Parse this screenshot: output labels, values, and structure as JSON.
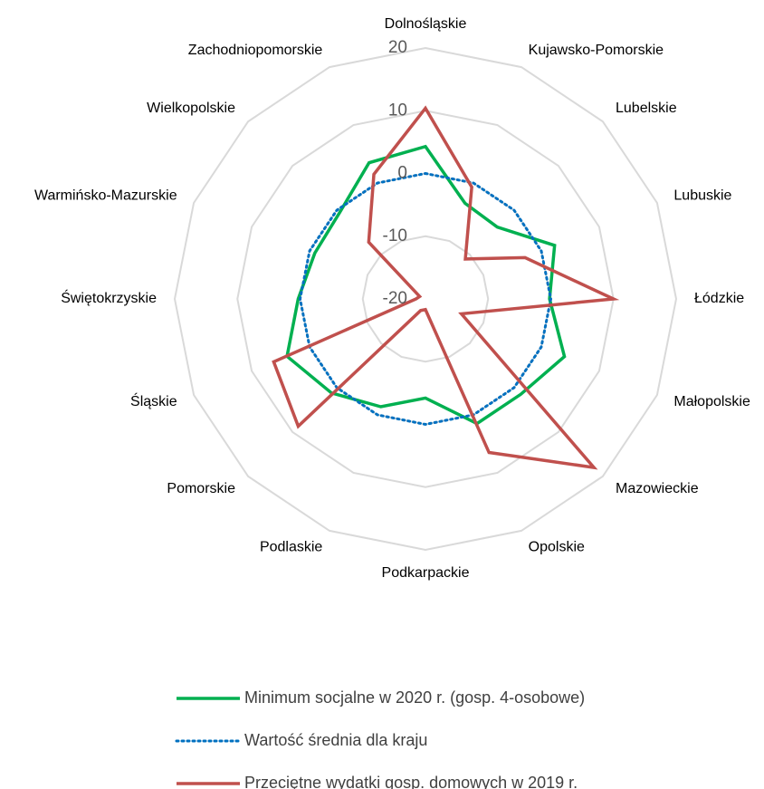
{
  "chart_data": {
    "type": "radar",
    "categories": [
      "Dolnośląskie",
      "Kujawsko-Pomorskie",
      "Lubelskie",
      "Lubuskie",
      "Łódzkie",
      "Małopolskie",
      "Mazowieckie",
      "Opolskie",
      "Podkarpackie",
      "Podlaskie",
      "Pomorskie",
      "Śląskie",
      "Świętokrzyskie",
      "Warmińsko-Mazurskie",
      "Wielkopolskie",
      "Zachodniopomorskie"
    ],
    "series": [
      {
        "name": "Minimum socjalne w 2020 r. (gosp. 4-osobowe)",
        "color": "#00b050",
        "line_style": "solid",
        "values": [
          4.3,
          -3.5,
          -3.8,
          2.3,
          -0.2,
          4,
          1.5,
          1.5,
          -4.2,
          -1.4,
          1.2,
          3.9,
          0.3,
          -0.9,
          -0.6,
          3.5
        ]
      },
      {
        "name": "Wartość średnia dla kraju",
        "color": "#0070c0",
        "line_style": "dotted",
        "values": [
          0,
          0,
          0,
          0,
          0,
          0,
          0,
          0,
          0,
          0,
          0,
          0,
          0,
          0,
          0,
          0
        ]
      },
      {
        "name": "Przeciętne wydatki gosp. domowych w 2019 r.",
        "color": "#c0504d",
        "line_style": "solid",
        "values": [
          10.4,
          -0.7,
          -11,
          -2.8,
          10,
          -13.8,
          18,
          6.5,
          -18.3,
          -18,
          8.7,
          6.2,
          -18.5,
          -19,
          -7.2,
          1.5
        ]
      }
    ],
    "rlim": [
      -20,
      20
    ],
    "rticks": [
      -20,
      -10,
      0,
      10,
      20
    ],
    "grid": true,
    "legend": "bottom"
  }
}
